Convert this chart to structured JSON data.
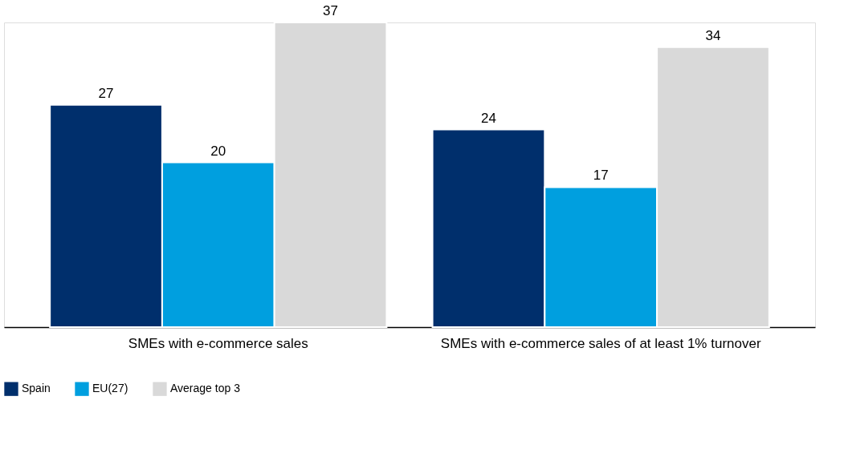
{
  "chart_data": {
    "type": "bar",
    "categories": [
      "SMEs with e-commerce sales",
      "SMEs with e-commerce sales of at least 1% turnover"
    ],
    "series": [
      {
        "name": "Spain",
        "color": "#002f6c",
        "values": [
          27,
          24
        ]
      },
      {
        "name": "EU(27)",
        "color": "#009fdf",
        "values": [
          20,
          17
        ]
      },
      {
        "name": "Average top 3",
        "color": "#d9d9d9",
        "values": [
          37,
          34
        ]
      }
    ],
    "data_labels": true,
    "legend": "bottom left",
    "grid": false
  }
}
